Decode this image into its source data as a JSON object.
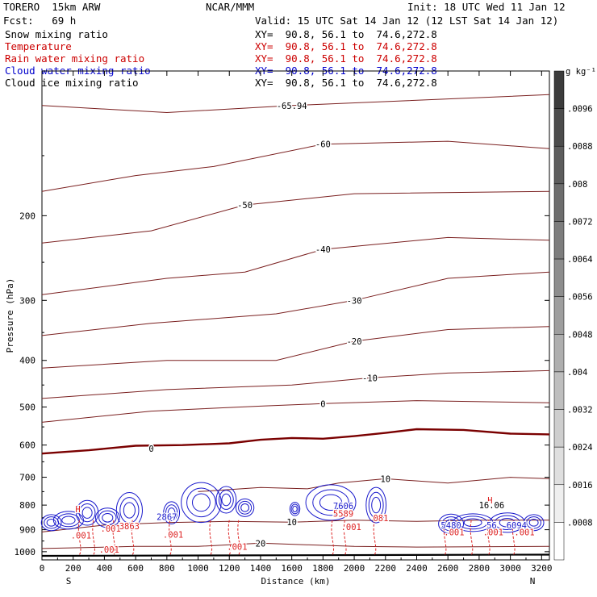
{
  "header": {
    "model": "TORERO  15km ARW",
    "center": "NCAR/MMM",
    "init": "Init: 18 UTC Wed 11 Jan 12",
    "fcst": "Fcst:   69 h",
    "valid": "Valid: 15 UTC Sat 14 Jan 12 (12 LST Sat 14 Jan 12)"
  },
  "legend": [
    {
      "name": "Snow mixing ratio",
      "xy": "",
      "color": "#000000"
    },
    {
      "name": "Temperature",
      "xy": "XY=  90.8, 56.1 to  74.6,272.8",
      "color": "#cc0000"
    },
    {
      "name": "Rain water mixing ratio",
      "xy": "XY=  90.8, 56.1 to  74.6,272.8",
      "color": "#cc0000"
    },
    {
      "name": "Cloud water mixing ratio",
      "xy": "XY=  90.8, 56.1 to  74.6,272.8",
      "color": "#0000cc"
    },
    {
      "name": "Cloud ice mixing ratio",
      "xy": "XY=  90.8, 56.1 to  74.6,272.8",
      "color": "#000000"
    }
  ],
  "snow_xy": "XY=  90.8, 56.1 to  74.6,272.8",
  "colors": {
    "temp": "#7a1f1f",
    "freezing": "#7a0000",
    "rain": "#dd2222",
    "cloudwater": "#1a1acc",
    "cloudice": "#000000",
    "ground": "#000000"
  },
  "chart_data": {
    "type": "contour",
    "xlabel": "Distance (km)",
    "ylabel": "Pressure (hPa)",
    "xlim": [
      0,
      3250
    ],
    "ylim": [
      1040,
      100
    ],
    "x_ticks": [
      "0",
      "200",
      "400",
      "600",
      "800",
      "1000",
      "1200",
      "1400",
      "1600",
      "1800",
      "2000",
      "2200",
      "2400",
      "2600",
      "2800",
      "3000",
      "3200"
    ],
    "y_ticks": [
      "200",
      "300",
      "400",
      "500",
      "600",
      "700",
      "800",
      "900",
      "1000"
    ],
    "x_end_labels": {
      "left": "S",
      "right": "N"
    },
    "colorbar": {
      "unit": "g kg⁻¹",
      "labels": [
        ".0096",
        ".0088",
        ".008",
        ".0072",
        ".0064",
        ".0056",
        ".0048",
        ".004",
        ".0032",
        ".0024",
        ".0016",
        ".0008"
      ]
    },
    "temperature_contours": [
      {
        "label": "-65.94",
        "points": [
          [
            0,
            118
          ],
          [
            800,
            122
          ],
          [
            1600,
            118
          ],
          [
            3250,
            112
          ]
        ]
      },
      {
        "label": "-60",
        "points": [
          [
            0,
            178
          ],
          [
            600,
            165
          ],
          [
            1100,
            158
          ],
          [
            1800,
            142
          ],
          [
            2600,
            140
          ],
          [
            3250,
            145
          ]
        ]
      },
      {
        "label": "-50",
        "points": [
          [
            0,
            228
          ],
          [
            700,
            215
          ],
          [
            1300,
            190
          ],
          [
            2000,
            180
          ],
          [
            3250,
            178
          ]
        ]
      },
      {
        "label": "-40",
        "points": [
          [
            0,
            292
          ],
          [
            800,
            270
          ],
          [
            1300,
            262
          ],
          [
            1800,
            235
          ],
          [
            2600,
            222
          ],
          [
            3250,
            225
          ]
        ]
      },
      {
        "label": "-30",
        "points": [
          [
            0,
            355
          ],
          [
            700,
            335
          ],
          [
            1500,
            320
          ],
          [
            2000,
            300
          ],
          [
            2600,
            270
          ],
          [
            3250,
            262
          ]
        ]
      },
      {
        "label": "-20",
        "points": [
          [
            0,
            415
          ],
          [
            800,
            400
          ],
          [
            1500,
            400
          ],
          [
            2000,
            365
          ],
          [
            2600,
            345
          ],
          [
            3250,
            340
          ]
        ]
      },
      {
        "label": "-10",
        "points": [
          [
            0,
            480
          ],
          [
            800,
            460
          ],
          [
            1600,
            450
          ],
          [
            2100,
            435
          ],
          [
            2600,
            425
          ],
          [
            3250,
            420
          ]
        ]
      },
      {
        "label": "0",
        "points": [
          [
            0,
            538
          ],
          [
            700,
            510
          ],
          [
            1400,
            498
          ],
          [
            1800,
            492
          ],
          [
            2400,
            485
          ],
          [
            3250,
            490
          ]
        ]
      }
    ],
    "contour_labels": [
      "-65.94",
      "-60",
      "-50",
      "-40",
      "-30",
      "-20",
      "-10",
      "0",
      "10",
      "20"
    ],
    "freezing_level": {
      "label": "0",
      "points": [
        [
          0,
          625
        ],
        [
          300,
          615
        ],
        [
          600,
          602
        ],
        [
          900,
          600
        ],
        [
          1200,
          595
        ],
        [
          1400,
          585
        ],
        [
          1600,
          580
        ],
        [
          1800,
          582
        ],
        [
          2000,
          575
        ],
        [
          2200,
          566
        ],
        [
          2400,
          556
        ],
        [
          2700,
          558
        ],
        [
          3000,
          568
        ],
        [
          3250,
          570
        ]
      ]
    },
    "cloud_labels": [
      ".001",
      "H",
      "2867",
      "3863",
      "5480",
      "56",
      "6094",
      "16.06",
      "7606",
      "5589",
      "081"
    ],
    "ground_pressure": 1020
  }
}
